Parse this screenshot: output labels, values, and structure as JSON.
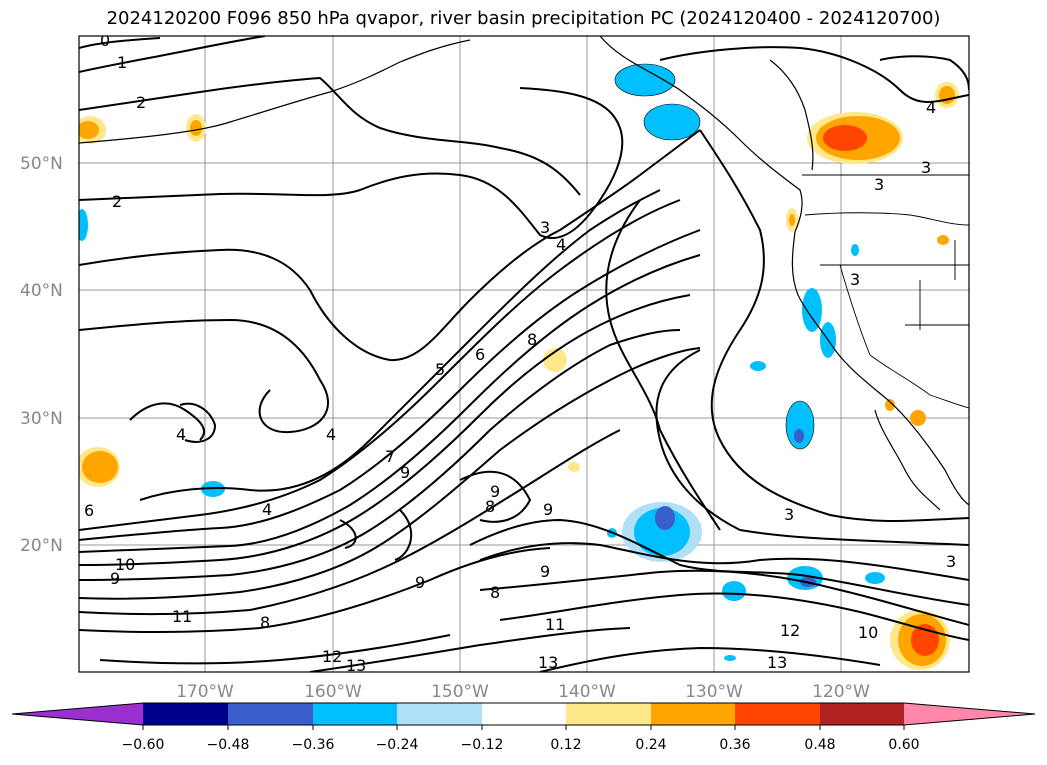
{
  "title": "2024120200 F096 850 hPa qvapor, river basin precipitation PC (2024120400 - 2024120700)",
  "lat_labels": [
    "50°N",
    "40°N",
    "30°N",
    "20°N"
  ],
  "lon_labels": [
    "170°W",
    "160°W",
    "150°W",
    "140°W",
    "130°W",
    "120°W"
  ],
  "contour_labels": [
    "0",
    "1",
    "2",
    "2",
    "3",
    "4",
    "4",
    "4",
    "4",
    "4",
    "5",
    "6",
    "7",
    "8",
    "8",
    "8",
    "8",
    "9",
    "9",
    "9",
    "9",
    "9",
    "10",
    "10",
    "11",
    "11",
    "12",
    "12",
    "13",
    "13",
    "13",
    "3",
    "3",
    "3",
    "3",
    "3",
    "6",
    "9"
  ],
  "colorbar": {
    "colors": [
      "#9b30d0",
      "#00008b",
      "#3a5fcd",
      "#00bfff",
      "#b0e0f8",
      "#ffffff",
      "#ffe88a",
      "#ffa500",
      "#ff4500",
      "#b22222",
      "#ff88aa"
    ],
    "labels": [
      "−0.60",
      "−0.48",
      "−0.36",
      "−0.24",
      "−0.12",
      "0.12",
      "0.24",
      "0.36",
      "0.48",
      "0.60"
    ]
  }
}
